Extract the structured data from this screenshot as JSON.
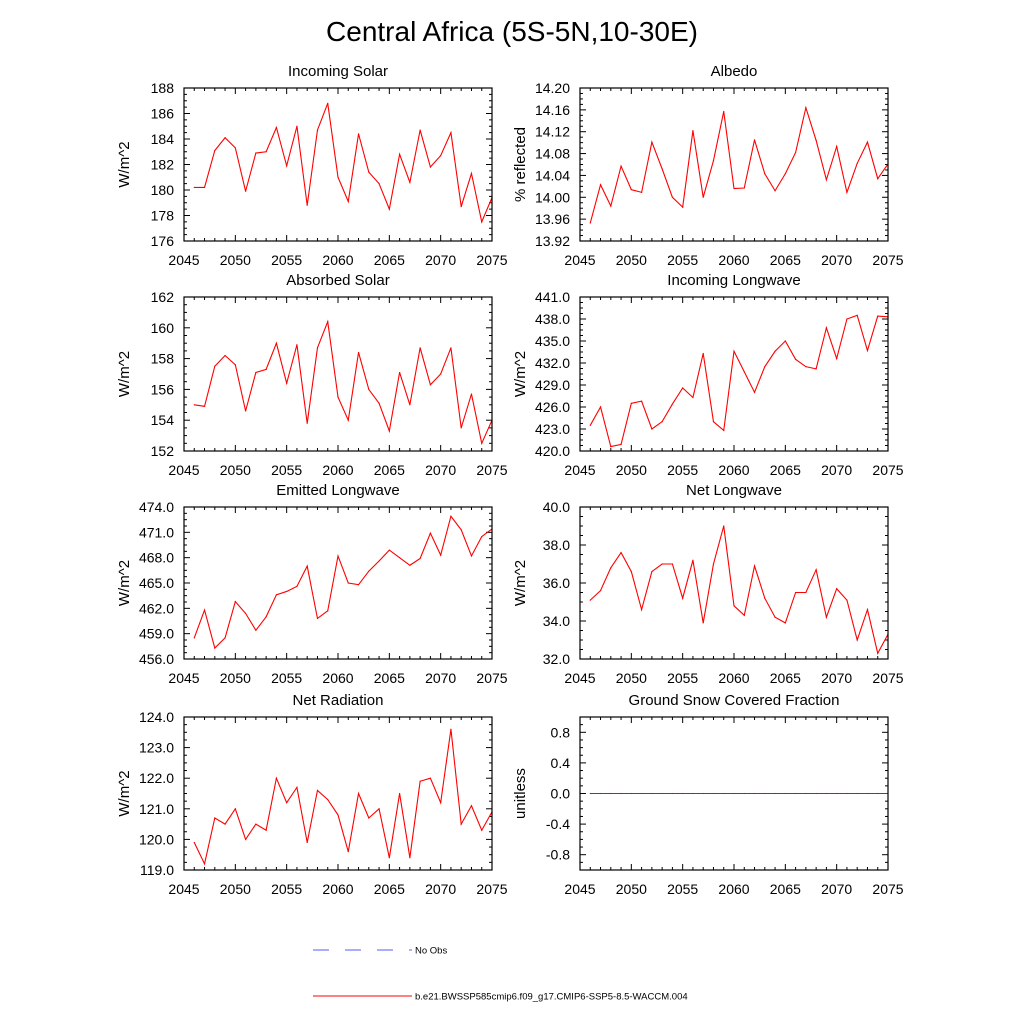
{
  "title": "Central Africa (5S-5N,10-30E)",
  "legend": [
    {
      "label": "No Obs",
      "color": "#5a5aff",
      "style": "dashed"
    },
    {
      "label": "b.e21.BWSSP585cmip6.f09_g17.CMIP6-SSP5-8.5-WACCM.004",
      "color": "#ff0000",
      "style": "solid"
    }
  ],
  "colors": {
    "series": "#ff0000",
    "obs": "#5a5aff",
    "axes": "#000000"
  },
  "chart_data": [
    {
      "type": "line",
      "title": "Incoming Solar",
      "xlabel": "",
      "ylabel": "W/m^2",
      "xlim": [
        2045,
        2075
      ],
      "ylim": [
        176,
        188
      ],
      "xticks": [
        2045,
        2050,
        2055,
        2060,
        2065,
        2070,
        2075
      ],
      "xtick_labels": [
        "2045",
        "2050",
        "2055",
        "2060",
        "2065",
        "2070",
        "2075"
      ],
      "yticks": [
        176,
        178,
        180,
        182,
        184,
        186,
        188
      ],
      "ytick_labels": [
        "176",
        "178",
        "180",
        "182",
        "184",
        "186",
        "188"
      ],
      "x": [
        2046,
        2047,
        2048,
        2049,
        2050,
        2051,
        2052,
        2053,
        2054,
        2055,
        2056,
        2057,
        2058,
        2059,
        2060,
        2061,
        2062,
        2063,
        2064,
        2065,
        2066,
        2067,
        2068,
        2069,
        2070,
        2071,
        2072,
        2073,
        2074,
        2075
      ],
      "values": [
        180.2,
        180.2,
        183.1,
        184.1,
        183.3,
        179.9,
        182.9,
        183.0,
        184.9,
        181.9,
        185.0,
        178.8,
        184.7,
        186.8,
        181.0,
        179.1,
        184.4,
        181.4,
        180.5,
        178.5,
        182.8,
        180.6,
        184.7,
        181.8,
        182.7,
        184.5,
        178.7,
        181.3,
        177.5,
        179.4
      ]
    },
    {
      "type": "line",
      "title": "Albedo",
      "xlabel": "",
      "ylabel": "% reflected",
      "xlim": [
        2045,
        2075
      ],
      "ylim": [
        13.92,
        14.2
      ],
      "xticks": [
        2045,
        2050,
        2055,
        2060,
        2065,
        2070,
        2075
      ],
      "xtick_labels": [
        "2045",
        "2050",
        "2055",
        "2060",
        "2065",
        "2070",
        "2075"
      ],
      "yticks": [
        13.92,
        13.96,
        14.0,
        14.04,
        14.08,
        14.12,
        14.16,
        14.2
      ],
      "ytick_labels": [
        "13.92",
        "13.96",
        "14.00",
        "14.04",
        "14.08",
        "14.12",
        "14.16",
        "14.20"
      ],
      "x": [
        2046,
        2047,
        2048,
        2049,
        2050,
        2051,
        2052,
        2053,
        2054,
        2055,
        2056,
        2057,
        2058,
        2059,
        2060,
        2061,
        2062,
        2063,
        2064,
        2065,
        2066,
        2067,
        2068,
        2069,
        2070,
        2071,
        2072,
        2073,
        2074,
        2075
      ],
      "values": [
        13.953,
        14.023,
        13.984,
        14.057,
        14.014,
        14.009,
        14.101,
        14.052,
        14.0,
        13.982,
        14.122,
        14.0,
        14.067,
        14.157,
        14.016,
        14.017,
        14.105,
        14.043,
        14.012,
        14.043,
        14.082,
        14.164,
        14.104,
        14.032,
        14.093,
        14.009,
        14.062,
        14.101,
        14.034,
        14.061
      ]
    },
    {
      "type": "line",
      "title": "Absorbed Solar",
      "xlabel": "",
      "ylabel": "W/m^2",
      "xlim": [
        2045,
        2075
      ],
      "ylim": [
        152,
        162
      ],
      "xticks": [
        2045,
        2050,
        2055,
        2060,
        2065,
        2070,
        2075
      ],
      "xtick_labels": [
        "2045",
        "2050",
        "2055",
        "2060",
        "2065",
        "2070",
        "2075"
      ],
      "yticks": [
        152,
        154,
        156,
        158,
        160,
        162
      ],
      "ytick_labels": [
        "152",
        "154",
        "156",
        "158",
        "160",
        "162"
      ],
      "x": [
        2046,
        2047,
        2048,
        2049,
        2050,
        2051,
        2052,
        2053,
        2054,
        2055,
        2056,
        2057,
        2058,
        2059,
        2060,
        2061,
        2062,
        2063,
        2064,
        2065,
        2066,
        2067,
        2068,
        2069,
        2070,
        2071,
        2072,
        2073,
        2074,
        2075
      ],
      "values": [
        155.0,
        154.9,
        157.5,
        158.2,
        157.6,
        154.6,
        157.1,
        157.3,
        159.0,
        156.4,
        158.9,
        153.8,
        158.7,
        160.4,
        155.5,
        154.0,
        158.4,
        156.0,
        155.1,
        153.3,
        157.1,
        155.0,
        158.7,
        156.3,
        157.0,
        158.7,
        153.5,
        155.7,
        152.5,
        154.0
      ]
    },
    {
      "type": "line",
      "title": "Incoming Longwave",
      "xlabel": "",
      "ylabel": "W/m^2",
      "xlim": [
        2045,
        2075
      ],
      "ylim": [
        420,
        441
      ],
      "xticks": [
        2045,
        2050,
        2055,
        2060,
        2065,
        2070,
        2075
      ],
      "xtick_labels": [
        "2045",
        "2050",
        "2055",
        "2060",
        "2065",
        "2070",
        "2075"
      ],
      "yticks": [
        420,
        423,
        426,
        429,
        432,
        435,
        438,
        441
      ],
      "ytick_labels": [
        "420.0",
        "423.0",
        "426.0",
        "429.0",
        "432.0",
        "435.0",
        "438.0",
        "441.0"
      ],
      "x": [
        2046,
        2047,
        2048,
        2049,
        2050,
        2051,
        2052,
        2053,
        2054,
        2055,
        2056,
        2057,
        2058,
        2059,
        2060,
        2061,
        2062,
        2063,
        2064,
        2065,
        2066,
        2067,
        2068,
        2069,
        2070,
        2071,
        2072,
        2073,
        2074,
        2075
      ],
      "values": [
        423.5,
        426.0,
        420.6,
        420.9,
        426.5,
        426.8,
        423.0,
        424.0,
        426.4,
        428.6,
        427.3,
        433.3,
        424.0,
        422.8,
        433.6,
        430.8,
        428.0,
        431.5,
        433.6,
        435.0,
        432.5,
        431.5,
        431.2,
        436.8,
        432.6,
        438.0,
        438.5,
        433.7,
        438.4,
        438.3
      ]
    },
    {
      "type": "line",
      "title": "Emitted Longwave",
      "xlabel": "",
      "ylabel": "W/m^2",
      "xlim": [
        2045,
        2075
      ],
      "ylim": [
        456,
        474
      ],
      "xticks": [
        2045,
        2050,
        2055,
        2060,
        2065,
        2070,
        2075
      ],
      "xtick_labels": [
        "2045",
        "2050",
        "2055",
        "2060",
        "2065",
        "2070",
        "2075"
      ],
      "yticks": [
        456,
        459,
        462,
        465,
        468,
        471,
        474
      ],
      "ytick_labels": [
        "456.0",
        "459.0",
        "462.0",
        "465.0",
        "468.0",
        "471.0",
        "474.0"
      ],
      "x": [
        2046,
        2047,
        2048,
        2049,
        2050,
        2051,
        2052,
        2053,
        2054,
        2055,
        2056,
        2057,
        2058,
        2059,
        2060,
        2061,
        2062,
        2063,
        2064,
        2065,
        2066,
        2067,
        2068,
        2069,
        2070,
        2071,
        2072,
        2073,
        2074,
        2075
      ],
      "values": [
        458.5,
        461.8,
        457.3,
        458.5,
        462.8,
        461.4,
        459.4,
        461.0,
        463.6,
        464.0,
        464.6,
        467.0,
        460.8,
        461.7,
        468.2,
        465.0,
        464.8,
        466.4,
        467.6,
        468.9,
        468.0,
        467.1,
        467.9,
        470.9,
        468.3,
        472.9,
        471.3,
        468.2,
        470.5,
        471.4
      ]
    },
    {
      "type": "line",
      "title": "Net Longwave",
      "xlabel": "",
      "ylabel": "W/m^2",
      "xlim": [
        2045,
        2075
      ],
      "ylim": [
        32,
        40
      ],
      "xticks": [
        2045,
        2050,
        2055,
        2060,
        2065,
        2070,
        2075
      ],
      "xtick_labels": [
        "2045",
        "2050",
        "2055",
        "2060",
        "2065",
        "2070",
        "2075"
      ],
      "yticks": [
        32,
        34,
        36,
        38,
        40
      ],
      "ytick_labels": [
        "32.0",
        "34.0",
        "36.0",
        "38.0",
        "40.0"
      ],
      "x": [
        2046,
        2047,
        2048,
        2049,
        2050,
        2051,
        2052,
        2053,
        2054,
        2055,
        2056,
        2057,
        2058,
        2059,
        2060,
        2061,
        2062,
        2063,
        2064,
        2065,
        2066,
        2067,
        2068,
        2069,
        2070,
        2071,
        2072,
        2073,
        2074,
        2075
      ],
      "values": [
        35.1,
        35.6,
        36.8,
        37.6,
        36.6,
        34.6,
        36.6,
        37.0,
        37.0,
        35.2,
        37.2,
        33.9,
        37.0,
        39.0,
        34.8,
        34.3,
        36.9,
        35.2,
        34.2,
        33.9,
        35.5,
        35.5,
        36.7,
        34.2,
        35.7,
        35.1,
        33.0,
        34.6,
        32.3,
        33.3
      ]
    },
    {
      "type": "line",
      "title": "Net Radiation",
      "xlabel": "",
      "ylabel": "W/m^2",
      "xlim": [
        2045,
        2075
      ],
      "ylim": [
        119,
        124
      ],
      "xticks": [
        2045,
        2050,
        2055,
        2060,
        2065,
        2070,
        2075
      ],
      "xtick_labels": [
        "2045",
        "2050",
        "2055",
        "2060",
        "2065",
        "2070",
        "2075"
      ],
      "yticks": [
        119,
        120,
        121,
        122,
        123,
        124
      ],
      "ytick_labels": [
        "119.0",
        "120.0",
        "121.0",
        "122.0",
        "123.0",
        "124.0"
      ],
      "x": [
        2046,
        2047,
        2048,
        2049,
        2050,
        2051,
        2052,
        2053,
        2054,
        2055,
        2056,
        2057,
        2058,
        2059,
        2060,
        2061,
        2062,
        2063,
        2064,
        2065,
        2066,
        2067,
        2068,
        2069,
        2070,
        2071,
        2072,
        2073,
        2074,
        2075
      ],
      "values": [
        119.9,
        119.2,
        120.7,
        120.5,
        121.0,
        120.0,
        120.5,
        120.3,
        122.0,
        121.2,
        121.7,
        119.9,
        121.6,
        121.3,
        120.8,
        119.6,
        121.5,
        120.7,
        121.0,
        119.4,
        121.5,
        119.4,
        121.9,
        122.0,
        121.2,
        123.6,
        120.5,
        121.1,
        120.3,
        120.9
      ]
    },
    {
      "type": "line",
      "title": "Ground Snow Covered Fraction",
      "xlabel": "",
      "ylabel": "unitless",
      "xlim": [
        2045,
        2075
      ],
      "ylim": [
        -1,
        1
      ],
      "xticks": [
        2045,
        2050,
        2055,
        2060,
        2065,
        2070,
        2075
      ],
      "xtick_labels": [
        "2045",
        "2050",
        "2055",
        "2060",
        "2065",
        "2070",
        "2075"
      ],
      "yticks": [
        -0.8,
        -0.4,
        0.0,
        0.4,
        0.8
      ],
      "ytick_labels": [
        "-0.8",
        "-0.4",
        "0.0",
        "0.4",
        "0.8"
      ],
      "x": [
        2046,
        2047,
        2048,
        2049,
        2050,
        2051,
        2052,
        2053,
        2054,
        2055,
        2056,
        2057,
        2058,
        2059,
        2060,
        2061,
        2062,
        2063,
        2064,
        2065,
        2066,
        2067,
        2068,
        2069,
        2070,
        2071,
        2072,
        2073,
        2074,
        2075
      ],
      "values": [
        0,
        0,
        0,
        0,
        0,
        0,
        0,
        0,
        0,
        0,
        0,
        0,
        0,
        0,
        0,
        0,
        0,
        0,
        0,
        0,
        0,
        0,
        0,
        0,
        0,
        0,
        0,
        0,
        0,
        0
      ]
    }
  ]
}
